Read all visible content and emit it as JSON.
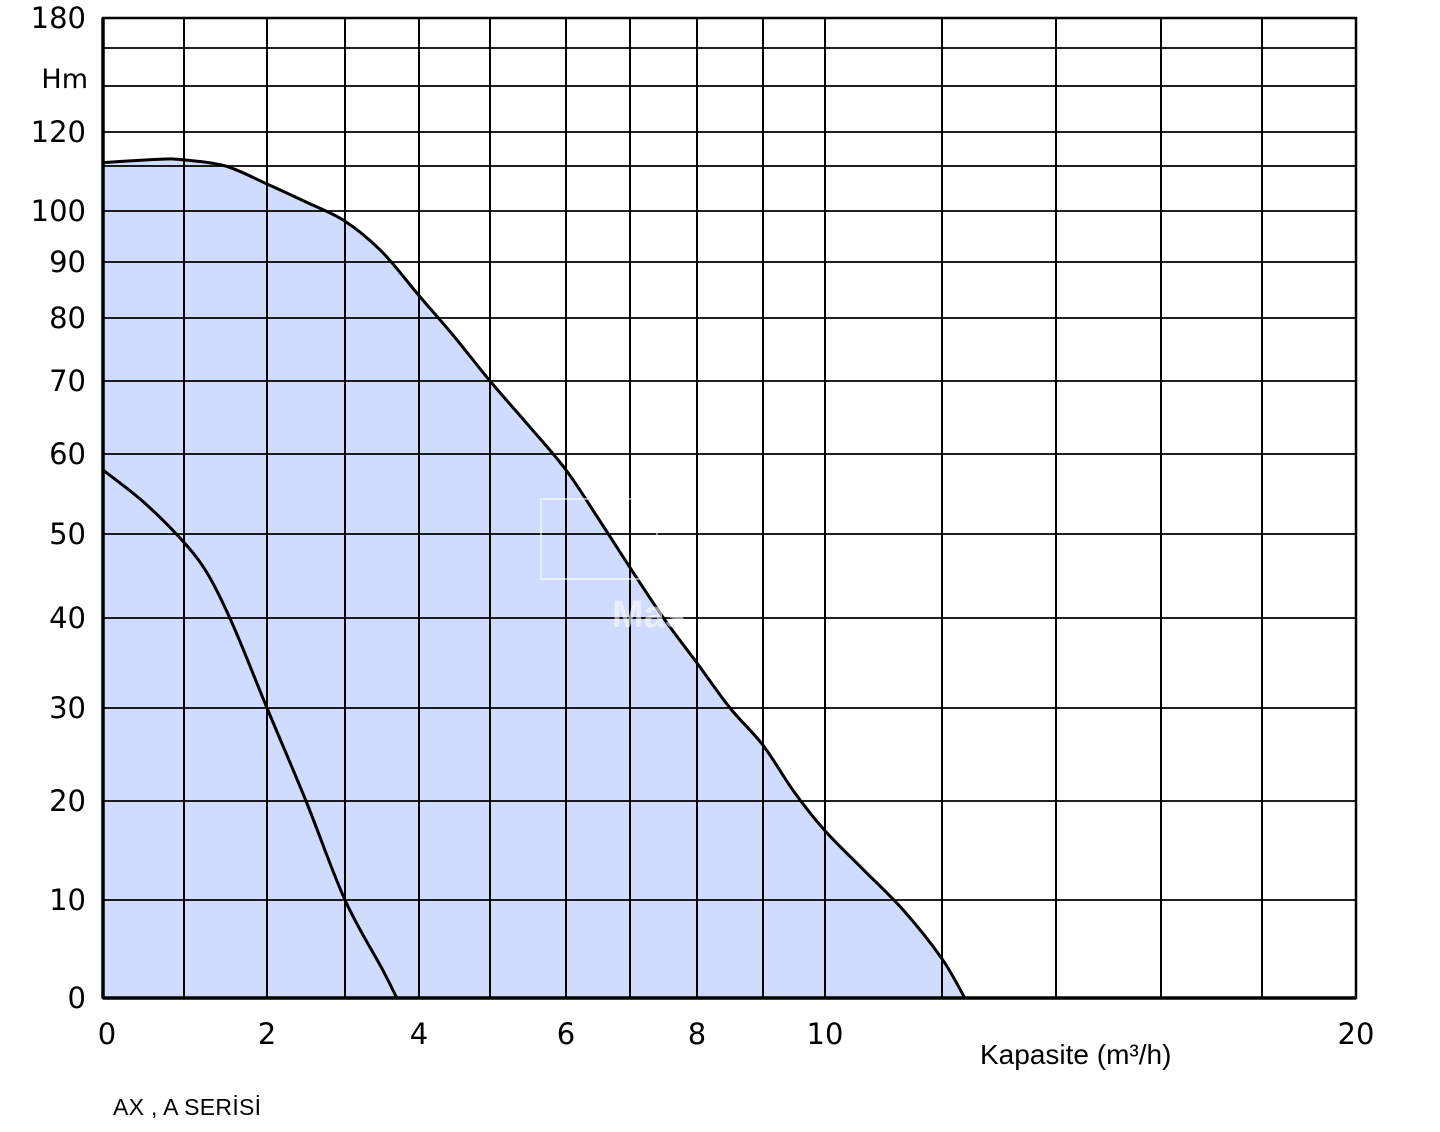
{
  "chart_data": {
    "type": "area",
    "ylabel": "Hm",
    "xlabel": "Kapasite (m³/h)",
    "caption": "AX , A SERİSİ",
    "xlim": [
      0,
      20
    ],
    "ylim": [
      0,
      180
    ],
    "x_ticks": [
      0,
      2,
      4,
      6,
      8,
      10,
      20
    ],
    "y_ticks": [
      0,
      10,
      20,
      30,
      40,
      50,
      60,
      70,
      80,
      90,
      100,
      120,
      180
    ],
    "x_grid": [
      0,
      1,
      2,
      3,
      4,
      5,
      6,
      7,
      8,
      9,
      10,
      11.5,
      13,
      14.5,
      16,
      20
    ],
    "y_grid": [
      0,
      10,
      20,
      30,
      40,
      50,
      60,
      70,
      80,
      90,
      100,
      110,
      120,
      140,
      160,
      180
    ],
    "fill_color": "#cfdcfd",
    "series": [
      {
        "role": "upper-curve",
        "x": [
          0,
          0.7,
          1.0,
          1.5,
          2.0,
          2.5,
          3.0,
          3.5,
          4.0,
          4.5,
          5.0,
          5.5,
          6.0,
          6.5,
          7.0,
          7.5,
          8.0,
          8.5,
          9.0,
          9.5,
          10.0,
          10.5,
          11.0,
          11.5,
          11.8
        ],
        "y": [
          111,
          112,
          111.8,
          110,
          106,
          102,
          98,
          92,
          84,
          77,
          70,
          64,
          58,
          52,
          46,
          40,
          35,
          30,
          26,
          21,
          17,
          13,
          9,
          4,
          0
        ]
      },
      {
        "role": "lower-curve",
        "x": [
          0,
          0.5,
          1.0,
          1.3,
          1.6,
          2.0,
          2.5,
          3.0,
          3.5,
          3.7
        ],
        "y": [
          58,
          54,
          49,
          45,
          39,
          30,
          20,
          10,
          3,
          0
        ]
      }
    ]
  }
}
